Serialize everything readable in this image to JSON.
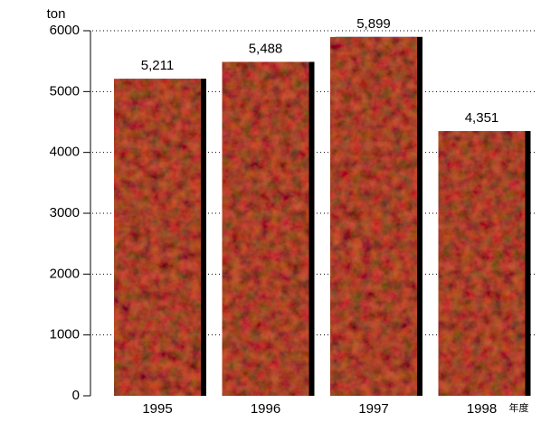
{
  "chart_data": {
    "type": "bar",
    "y_label": "ton",
    "x_unit": "年度",
    "categories": [
      "1995",
      "1996",
      "1997",
      "1998"
    ],
    "values": [
      5211,
      5488,
      5899,
      4351
    ],
    "value_labels": [
      "5,211",
      "5,488",
      "5,899",
      "4,351"
    ],
    "color": "#c8643c",
    "ylim": [
      0,
      6000
    ],
    "yticks": [
      0,
      1000,
      2000,
      3000,
      4000,
      5000,
      6000
    ],
    "grid": true
  }
}
